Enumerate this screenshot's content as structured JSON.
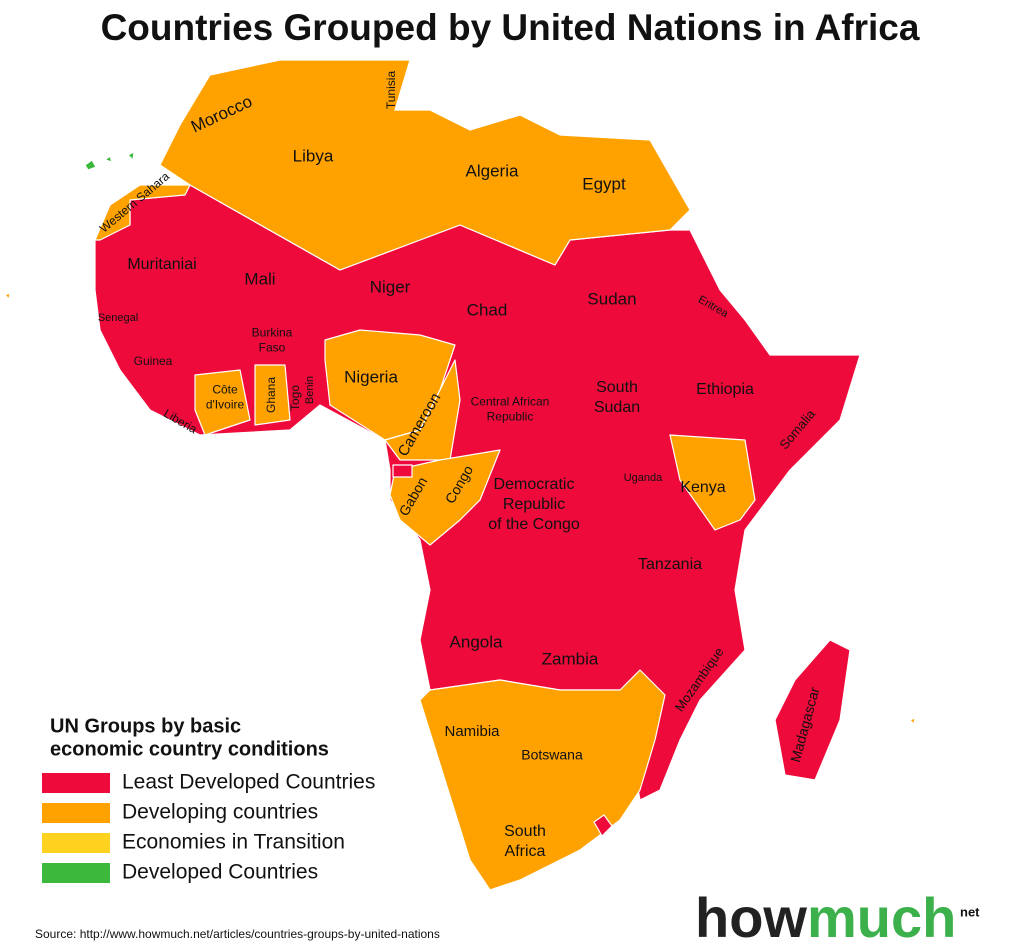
{
  "title": "Countries Grouped by United Nations in Africa",
  "legend": {
    "title": [
      "UN Groups by basic",
      "economic country conditions"
    ],
    "entries": [
      {
        "label": "Least Developed Countries",
        "color": "#ee0a3a"
      },
      {
        "label": "Developing countries",
        "color": "#ffa200"
      },
      {
        "label": "Economies in Transition",
        "color": "#ffd21f"
      },
      {
        "label": "Developed Countries",
        "color": "#3cb93c"
      }
    ]
  },
  "labels": [
    {
      "lines": [
        "Tunisia"
      ]
    },
    {
      "lines": [
        "Morocco"
      ]
    },
    {
      "lines": [
        "Libya"
      ]
    },
    {
      "lines": [
        "Algeria"
      ]
    },
    {
      "lines": [
        "Egypt"
      ]
    },
    {
      "lines": [
        "Western Sahara"
      ]
    },
    {
      "lines": [
        "Muritaniai"
      ]
    },
    {
      "lines": [
        "Mali"
      ]
    },
    {
      "lines": [
        "Niger"
      ]
    },
    {
      "lines": [
        "Chad"
      ]
    },
    {
      "lines": [
        "Sudan"
      ]
    },
    {
      "lines": [
        "Eritrea"
      ]
    },
    {
      "lines": [
        "Senegal"
      ]
    },
    {
      "lines": [
        "Burkina",
        "Faso"
      ]
    },
    {
      "lines": [
        "Guinea"
      ]
    },
    {
      "lines": [
        "Nigeria"
      ]
    },
    {
      "lines": [
        "Ethiopia"
      ]
    },
    {
      "lines": [
        "Côte",
        "d'Ivoire"
      ]
    },
    {
      "lines": [
        "Ghana"
      ]
    },
    {
      "lines": [
        "Togo"
      ]
    },
    {
      "lines": [
        "Benin"
      ]
    },
    {
      "lines": [
        "Liberia"
      ]
    },
    {
      "lines": [
        "Cameroon"
      ]
    },
    {
      "lines": [
        "Central African",
        "Republic"
      ]
    },
    {
      "lines": [
        "South",
        "Sudan"
      ]
    },
    {
      "lines": [
        "Somalia"
      ]
    },
    {
      "lines": [
        "Uganda"
      ]
    },
    {
      "lines": [
        "Kenya"
      ]
    },
    {
      "lines": [
        "Gabon"
      ]
    },
    {
      "lines": [
        "Congo"
      ]
    },
    {
      "lines": [
        "Democratic",
        "Republic",
        "of the Congo"
      ]
    },
    {
      "lines": [
        "Tanzania"
      ]
    },
    {
      "lines": [
        "Angola"
      ]
    },
    {
      "lines": [
        "Zambia"
      ]
    },
    {
      "lines": [
        "Mozambique"
      ]
    },
    {
      "lines": [
        "Madagascar"
      ]
    },
    {
      "lines": [
        "Namibia"
      ]
    },
    {
      "lines": [
        "Botswana"
      ]
    },
    {
      "lines": [
        "South",
        "Africa"
      ]
    }
  ],
  "source": "Source: http://www.howmuch.net/articles/countries-groups-by-united-nations",
  "logo": {
    "part1": "how",
    "part2": "much",
    "suffix": "net"
  }
}
